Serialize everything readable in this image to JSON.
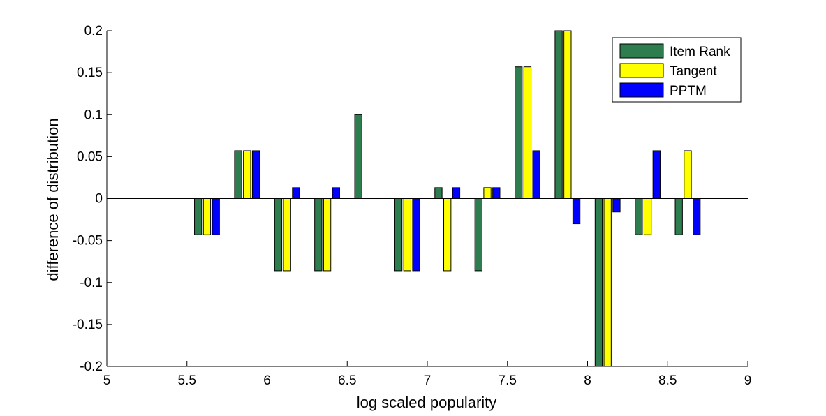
{
  "chart_data": {
    "type": "bar",
    "title": "",
    "xlabel": "log scaled popularity",
    "ylabel": "difference of distribution",
    "xlim": [
      5,
      9
    ],
    "ylim": [
      -0.2,
      0.2
    ],
    "xticks": [
      "5",
      "5.5",
      "6",
      "6.5",
      "7",
      "7.5",
      "8",
      "8.5",
      "9"
    ],
    "yticks": [
      "-0.2",
      "-0.15",
      "-0.1",
      "-0.05",
      "0",
      "0.05",
      "0.1",
      "0.15",
      "0.2"
    ],
    "x": [
      5.625,
      5.875,
      6.125,
      6.375,
      6.625,
      6.875,
      7.125,
      7.375,
      7.625,
      7.875,
      8.125,
      8.375,
      8.625
    ],
    "series": [
      {
        "name": "Item Rank",
        "color": "#2e7d4f",
        "values": [
          -0.043,
          0.057,
          -0.086,
          -0.086,
          0.1,
          -0.086,
          0.013,
          -0.086,
          0.157,
          0.2,
          -0.2,
          -0.043,
          -0.043
        ]
      },
      {
        "name": "Tangent",
        "color": "#ffff00",
        "values": [
          -0.043,
          0.057,
          -0.086,
          -0.086,
          0,
          -0.086,
          -0.086,
          0.013,
          0.157,
          0.2,
          -0.2,
          -0.043,
          0.057
        ]
      },
      {
        "name": "PPTM",
        "color": "#0000ff",
        "values": [
          -0.043,
          0.057,
          0.013,
          0.013,
          0,
          -0.086,
          0.013,
          0.013,
          0.057,
          -0.03,
          -0.016,
          0.057,
          -0.043
        ]
      }
    ],
    "grid": false,
    "legend_position": "top-right"
  }
}
